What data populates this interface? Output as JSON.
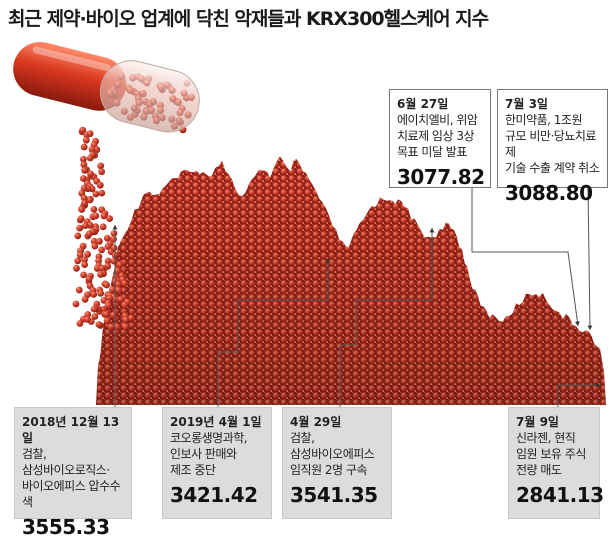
{
  "title": "최근 제약·바이오 업계에 닥친 악재들과 KRX300헬스케어 지수",
  "chart_data": {
    "type": "area",
    "title": "최근 제약·바이오 업계에 닥친 악재들과 KRX300헬스케어 지수",
    "series_color": "#c8372d",
    "index_points": [
      {
        "date": "2018년 12월 13일",
        "value": 3555.33
      },
      {
        "date": "2019년 4월 1일",
        "value": 3421.42
      },
      {
        "date": "4월 29일",
        "value": 3541.35
      },
      {
        "date": "6월 27일",
        "value": 3077.82
      },
      {
        "date": "7월 3일",
        "value": 3088.8
      },
      {
        "date": "7월 9일",
        "value": 2841.13
      }
    ]
  },
  "annotations": [
    {
      "id": "dec13",
      "date": "2018년 12월 13일",
      "desc": "검찰,\n삼성바이오로직스·\n바이오에피스 압수수색",
      "value": "3555.33"
    },
    {
      "id": "apr1",
      "date": "2019년 4월 1일",
      "desc": "코오롱생명과학,\n인보사 판매와\n제조 중단",
      "value": "3421.42"
    },
    {
      "id": "apr29",
      "date": "4월 29일",
      "desc": "검찰,\n삼성바이오에피스\n임직원 2명 구속",
      "value": "3541.35"
    },
    {
      "id": "jun27",
      "date": "6월 27일",
      "desc": "에이치엘비, 위암\n치료제 임상 3상\n목표 미달 발표",
      "value": "3077.82"
    },
    {
      "id": "jul3",
      "date": "7월 3일",
      "desc": "한미약품, 1조원\n규모 비만·당뇨치료제\n기술 수출 계약 취소",
      "value": "3088.80"
    },
    {
      "id": "jul9",
      "date": "7월 9일",
      "desc": "신라젠, 현직\n임원 보유 주식\n전량 매도",
      "value": "2841.13"
    }
  ]
}
